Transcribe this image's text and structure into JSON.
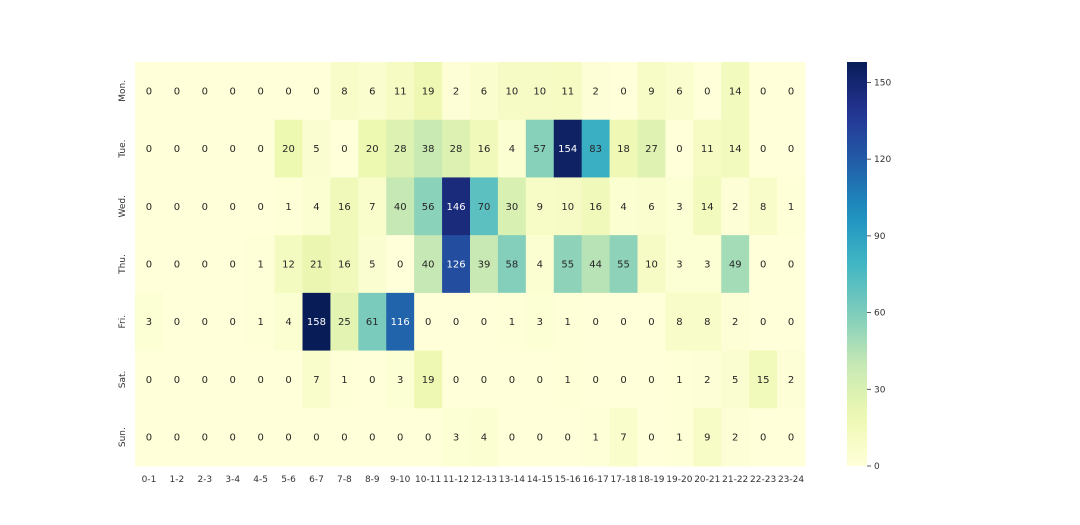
{
  "chart_data": {
    "type": "heatmap",
    "title": "",
    "xlabel": "",
    "ylabel": "",
    "x_categories": [
      "0-1",
      "1-2",
      "2-3",
      "3-4",
      "4-5",
      "5-6",
      "6-7",
      "7-8",
      "8-9",
      "9-10",
      "10-11",
      "11-12",
      "12-13",
      "13-14",
      "14-15",
      "15-16",
      "16-17",
      "17-18",
      "18-19",
      "19-20",
      "20-21",
      "21-22",
      "22-23",
      "23-24"
    ],
    "y_categories": [
      "Mon.",
      "Tue.",
      "Wed.",
      "Thu.",
      "Fri.",
      "Sat.",
      "Sun."
    ],
    "values": [
      [
        0,
        0,
        0,
        0,
        0,
        0,
        0,
        8,
        6,
        11,
        19,
        2,
        6,
        10,
        10,
        11,
        2,
        0,
        9,
        6,
        0,
        14,
        0,
        0
      ],
      [
        0,
        0,
        0,
        0,
        0,
        20,
        5,
        0,
        20,
        28,
        38,
        28,
        16,
        4,
        57,
        154,
        83,
        18,
        27,
        0,
        11,
        14,
        0,
        0
      ],
      [
        0,
        0,
        0,
        0,
        0,
        1,
        4,
        16,
        7,
        40,
        56,
        146,
        70,
        30,
        9,
        10,
        16,
        4,
        6,
        3,
        14,
        2,
        8,
        1
      ],
      [
        0,
        0,
        0,
        0,
        1,
        12,
        21,
        16,
        5,
        0,
        40,
        126,
        39,
        58,
        4,
        55,
        44,
        55,
        10,
        3,
        3,
        49,
        0,
        0
      ],
      [
        3,
        0,
        0,
        0,
        1,
        4,
        158,
        25,
        61,
        116,
        0,
        0,
        0,
        1,
        3,
        1,
        0,
        0,
        0,
        8,
        8,
        2,
        0,
        0
      ],
      [
        0,
        0,
        0,
        0,
        0,
        0,
        7,
        1,
        0,
        3,
        19,
        0,
        0,
        0,
        0,
        1,
        0,
        0,
        0,
        1,
        2,
        5,
        15,
        2
      ],
      [
        0,
        0,
        0,
        0,
        0,
        0,
        0,
        0,
        0,
        0,
        0,
        3,
        4,
        0,
        0,
        0,
        1,
        7,
        0,
        1,
        9,
        2,
        0,
        0
      ]
    ],
    "colormap": "YlGnBu",
    "color_range": [
      0,
      158
    ],
    "colorbar_ticks": [
      "0",
      "30",
      "60",
      "90",
      "120",
      "150"
    ],
    "annotate": true,
    "grid": false
  }
}
